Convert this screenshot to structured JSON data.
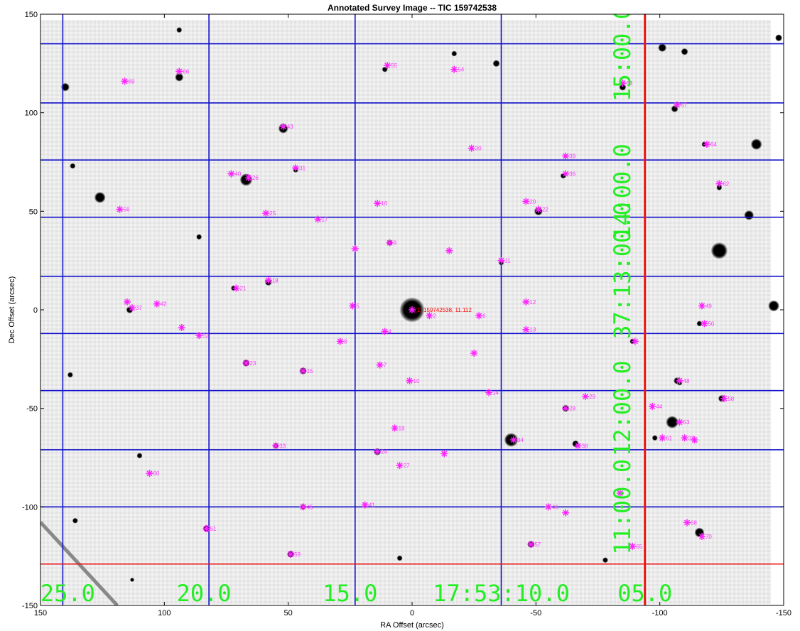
{
  "title": "Annotated Survey Image -- TIC 159742538",
  "xlabel": "RA Offset (arcsec)",
  "ylabel": "Dec Offset (arcsec)",
  "xlim": [
    150,
    -150
  ],
  "ylim": [
    -150,
    150
  ],
  "xticks": [
    150,
    100,
    50,
    0,
    -50,
    -100,
    -150
  ],
  "yticks": [
    150,
    100,
    50,
    0,
    -50,
    -100,
    -150
  ],
  "colors": {
    "grid": "#1010cc",
    "target_lines": "#ee1111",
    "markers": "#ff22ff",
    "coord_labels": "#22ee22"
  },
  "ra_grid_labels": [
    {
      "text": "25.0",
      "x": 139
    },
    {
      "text": "20.0",
      "x": 84
    },
    {
      "text": "15.0",
      "x": 25
    },
    {
      "text": "17:53:10.0",
      "x": -36
    },
    {
      "text": "05.0",
      "x": -94
    }
  ],
  "ra_grid_lines": [
    141,
    82,
    23,
    -36,
    -94
  ],
  "dec_grid_labels": [
    {
      "text": "15:00.0",
      "y": 130
    },
    {
      "text": "14:00.0",
      "y": 60
    },
    {
      "text": "37:13:00.0",
      "y": 20
    },
    {
      "text": "12:00.0",
      "y": -50
    },
    {
      "text": "11:00.0",
      "y": -100
    }
  ],
  "dec_grid_lines": [
    135,
    105,
    76,
    47,
    17,
    -12,
    -41,
    -71,
    -100
  ],
  "target": {
    "label": "(1) 159742538, 11.112",
    "x": 0,
    "y": 0
  },
  "target_lines": {
    "x": -94,
    "y": -129
  },
  "sources": [
    {
      "id": "2",
      "x": -7,
      "y": -3
    },
    {
      "id": "4",
      "x": 11,
      "y": -11
    },
    {
      "id": "5",
      "x": 24,
      "y": 2
    },
    {
      "id": "6",
      "x": -27,
      "y": -3
    },
    {
      "id": "7",
      "x": 13,
      "y": -28
    },
    {
      "id": "8",
      "x": 29,
      "y": -16
    },
    {
      "id": "9",
      "x": 9,
      "y": 34
    },
    {
      "id": "10",
      "x": 1,
      "y": -36
    },
    {
      "id": "11",
      "x": -36,
      "y": 25
    },
    {
      "id": "12",
      "x": -46,
      "y": 4
    },
    {
      "id": "13",
      "x": -46,
      "y": -10
    },
    {
      "id": "14",
      "x": -31,
      "y": -42
    },
    {
      "id": "15",
      "x": 44,
      "y": -31
    },
    {
      "id": "16",
      "x": 14,
      "y": 54
    },
    {
      "id": "17",
      "x": 38,
      "y": 46
    },
    {
      "id": "18",
      "x": 58,
      "y": 15
    },
    {
      "id": "19",
      "x": 7,
      "y": -60
    },
    {
      "id": "20",
      "x": -46,
      "y": 55
    },
    {
      "id": "21",
      "x": 71,
      "y": 11
    },
    {
      "id": "22",
      "x": -51,
      "y": 51
    },
    {
      "id": "23",
      "x": 67,
      "y": -27
    },
    {
      "id": "24",
      "x": 14,
      "y": -72
    },
    {
      "id": "25",
      "x": 59,
      "y": 49
    },
    {
      "id": "26",
      "x": 66,
      "y": 67
    },
    {
      "id": "27",
      "x": 5,
      "y": -79
    },
    {
      "id": "28",
      "x": -62,
      "y": -50
    },
    {
      "id": "29",
      "x": -70,
      "y": -44
    },
    {
      "id": "30",
      "x": -24,
      "y": 82
    },
    {
      "id": "31",
      "x": 47,
      "y": 72
    },
    {
      "id": "32",
      "x": -110,
      "y": -65
    },
    {
      "id": "33",
      "x": 55,
      "y": -69
    },
    {
      "id": "34",
      "x": -41,
      "y": -66
    },
    {
      "id": "36",
      "x": -62,
      "y": 69
    },
    {
      "id": "37",
      "x": 113,
      "y": 1
    },
    {
      "id": "38",
      "x": -67,
      "y": -69
    },
    {
      "id": "39",
      "x": -62,
      "y": 78
    },
    {
      "id": "40",
      "x": 73,
      "y": 69
    },
    {
      "id": "41",
      "x": 19,
      "y": -99
    },
    {
      "id": "42",
      "x": 103,
      "y": 3
    },
    {
      "id": "43",
      "x": 52,
      "y": 93
    },
    {
      "id": "44",
      "x": -97,
      "y": -49
    },
    {
      "id": "45",
      "x": 44,
      "y": -100
    },
    {
      "id": "46",
      "x": -55,
      "y": -100
    },
    {
      "id": "48",
      "x": -108,
      "y": -36
    },
    {
      "id": "49",
      "x": -117,
      "y": 2
    },
    {
      "id": "50",
      "x": -118,
      "y": -7
    },
    {
      "id": "51",
      "x": 83,
      "y": -111
    },
    {
      "id": "52",
      "x": 86,
      "y": -13
    },
    {
      "id": "53",
      "x": -108,
      "y": -57
    },
    {
      "id": "54",
      "x": -17,
      "y": 122
    },
    {
      "id": "55",
      "x": 10,
      "y": 124
    },
    {
      "id": "56",
      "x": 118,
      "y": 51
    },
    {
      "id": "57",
      "x": -48,
      "y": -119
    },
    {
      "id": "58",
      "x": -126,
      "y": -45
    },
    {
      "id": "59",
      "x": 49,
      "y": -124
    },
    {
      "id": "60",
      "x": 106,
      "y": -83
    },
    {
      "id": "61",
      "x": -101,
      "y": -65
    },
    {
      "id": "62",
      "x": -124,
      "y": 64
    },
    {
      "id": "63",
      "x": -85,
      "y": 115
    },
    {
      "id": "64",
      "x": -119,
      "y": 84
    },
    {
      "id": "65",
      "x": -89,
      "y": -120
    },
    {
      "id": "66",
      "x": 94,
      "y": 121
    },
    {
      "id": "67",
      "x": -107,
      "y": 104
    },
    {
      "id": "68",
      "x": -111,
      "y": -108
    },
    {
      "id": "69",
      "x": 116,
      "y": 116
    },
    {
      "id": "70",
      "x": -117,
      "y": -115
    }
  ],
  "unlabeled_sources": [
    {
      "x": 23,
      "y": 31
    },
    {
      "x": -15,
      "y": 30
    },
    {
      "x": 93,
      "y": -9
    },
    {
      "x": -25,
      "y": -22
    },
    {
      "x": -13,
      "y": -73
    },
    {
      "x": -84,
      "y": -93
    },
    {
      "x": -62,
      "y": -103
    },
    {
      "x": -114,
      "y": -66
    },
    {
      "x": -90,
      "y": -16
    },
    {
      "x": 115,
      "y": 4
    }
  ],
  "stars": [
    {
      "x": 0,
      "y": 0,
      "r": 18
    },
    {
      "x": -40,
      "y": -66,
      "r": 10
    },
    {
      "x": -124,
      "y": 30,
      "r": 12
    },
    {
      "x": 126,
      "y": 57,
      "r": 8
    },
    {
      "x": 67,
      "y": 66,
      "r": 9
    },
    {
      "x": 52,
      "y": 92,
      "r": 7
    },
    {
      "x": -105,
      "y": -57,
      "r": 9
    },
    {
      "x": -116,
      "y": -113,
      "r": 7
    },
    {
      "x": -139,
      "y": 84,
      "r": 8
    },
    {
      "x": -146,
      "y": 2,
      "r": 8
    },
    {
      "x": 140,
      "y": 113,
      "r": 6
    },
    {
      "x": -136,
      "y": 48,
      "r": 7
    },
    {
      "x": -34,
      "y": 125,
      "r": 5
    },
    {
      "x": -85,
      "y": 113,
      "r": 5
    },
    {
      "x": -101,
      "y": 133,
      "r": 6
    },
    {
      "x": -110,
      "y": 131,
      "r": 5
    },
    {
      "x": -148,
      "y": 138,
      "r": 5
    },
    {
      "x": 94,
      "y": 118,
      "r": 6
    },
    {
      "x": -51,
      "y": 50,
      "r": 6
    },
    {
      "x": -62,
      "y": -50,
      "r": 5
    },
    {
      "x": -107,
      "y": -36,
      "r": 5
    },
    {
      "x": 44,
      "y": -31,
      "r": 5
    },
    {
      "x": 67,
      "y": -27,
      "r": 5
    },
    {
      "x": 14,
      "y": -72,
      "r": 5
    },
    {
      "x": 83,
      "y": -111,
      "r": 5
    },
    {
      "x": 49,
      "y": -124,
      "r": 5
    },
    {
      "x": -48,
      "y": -119,
      "r": 5
    },
    {
      "x": 114,
      "y": 0,
      "r": 5
    },
    {
      "x": 137,
      "y": 73,
      "r": 4
    },
    {
      "x": 58,
      "y": 14,
      "r": 5
    },
    {
      "x": -66,
      "y": -68,
      "r": 5
    },
    {
      "x": -125,
      "y": -45,
      "r": 5
    },
    {
      "x": -106,
      "y": 102,
      "r": 5
    },
    {
      "x": -61,
      "y": 68,
      "r": 4
    },
    {
      "x": 11,
      "y": 122,
      "r": 4
    },
    {
      "x": -17,
      "y": 130,
      "r": 4
    },
    {
      "x": 94,
      "y": 142,
      "r": 4
    },
    {
      "x": -36,
      "y": 24,
      "r": 4
    },
    {
      "x": 9,
      "y": 34,
      "r": 4
    },
    {
      "x": 47,
      "y": 71,
      "r": 4
    },
    {
      "x": -124,
      "y": 62,
      "r": 4
    },
    {
      "x": -116,
      "y": -7,
      "r": 4
    },
    {
      "x": -118,
      "y": 84,
      "r": 4
    },
    {
      "x": 138,
      "y": -33,
      "r": 4
    },
    {
      "x": 55,
      "y": -69,
      "r": 4
    },
    {
      "x": 5,
      "y": -126,
      "r": 4
    },
    {
      "x": -98,
      "y": -65,
      "r": 4
    },
    {
      "x": -78,
      "y": -127,
      "r": 4
    },
    {
      "x": 86,
      "y": 37,
      "r": 4
    },
    {
      "x": 72,
      "y": 11,
      "r": 4
    },
    {
      "x": -156,
      "y": -73,
      "r": 3
    },
    {
      "x": 110,
      "y": -74,
      "r": 4
    },
    {
      "x": 136,
      "y": -107,
      "r": 4
    },
    {
      "x": 113,
      "y": -137,
      "r": 3
    },
    {
      "x": 44,
      "y": -100,
      "r": 4
    },
    {
      "x": -89,
      "y": -16,
      "r": 4
    },
    {
      "x": -108,
      "y": -37,
      "r": 4
    }
  ]
}
